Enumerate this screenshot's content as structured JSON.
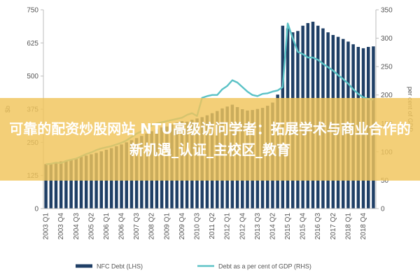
{
  "chart_data": {
    "type": "bar+line",
    "left_axis": {
      "label": "$b",
      "ticks": [
        0,
        125,
        250,
        375,
        500,
        625,
        750
      ],
      "ylim": [
        0,
        750
      ]
    },
    "right_axis": {
      "label": "per cent of GDP",
      "ticks": [
        0,
        50,
        100,
        150,
        200,
        250,
        300,
        350
      ],
      "ylim": [
        0,
        350
      ]
    },
    "x_tick_labels": [
      "2003 Q1",
      "2003 Q4",
      "2004 Q3",
      "2005 Q2",
      "2006 Q1",
      "2006 Q4",
      "2007 Q3",
      "2008 Q2",
      "2009 Q1",
      "2009 Q4",
      "2010 Q3",
      "2011 Q2",
      "2012 Q1",
      "2012 Q4",
      "2013 Q3",
      "2014 Q2",
      "2015 Q1",
      "2015 Q4",
      "2016 Q3",
      "2017 Q2",
      "2018 Q1",
      "2018 Q4"
    ],
    "x_tick_every": 3,
    "series": [
      {
        "name": "NFC Debt (LHS)",
        "type": "bar",
        "axis": "left",
        "color": "#1f3f66",
        "values": [
          168,
          171,
          174,
          178,
          181,
          185,
          190,
          195,
          200,
          205,
          210,
          216,
          222,
          228,
          235,
          242,
          250,
          258,
          266,
          274,
          283,
          292,
          300,
          306,
          310,
          318,
          325,
          330,
          328,
          335,
          340,
          345,
          352,
          360,
          368,
          378,
          385,
          392,
          383,
          375,
          370,
          372,
          376,
          380,
          388,
          400,
          430,
          690,
          680,
          665,
          670,
          690,
          700,
          705,
          690,
          680,
          665,
          655,
          648,
          640,
          630,
          620,
          610,
          605,
          610,
          612
        ]
      },
      {
        "name": "Debt as a per cent of GDP (RHS)",
        "type": "line",
        "axis": "right",
        "color": "#5bc2c6",
        "values": [
          78,
          79,
          81,
          80,
          84,
          86,
          88,
          92,
          96,
          99,
          103,
          106,
          108,
          110,
          113,
          116,
          120,
          126,
          132,
          136,
          140,
          146,
          150,
          152,
          154,
          156,
          158,
          160,
          165,
          168,
          163,
          195,
          198,
          200,
          200,
          210,
          216,
          226,
          222,
          214,
          206,
          200,
          198,
          202,
          203,
          206,
          208,
          214,
          326,
          300,
          276,
          272,
          266,
          266,
          262,
          255,
          249,
          243,
          235,
          228,
          220,
          210,
          202,
          196,
          193,
          192
        ]
      }
    ],
    "legend_position": "bottom",
    "grid": false
  },
  "overlay": {
    "text": "可靠的配资炒股网站 NTU高级访问学者：拓展学术与商业合作的新机遇_认证_主校区_教育"
  },
  "colors": {
    "bar": "#1f3f66",
    "line": "#5bc2c6",
    "overlay": "#f0c45a"
  }
}
